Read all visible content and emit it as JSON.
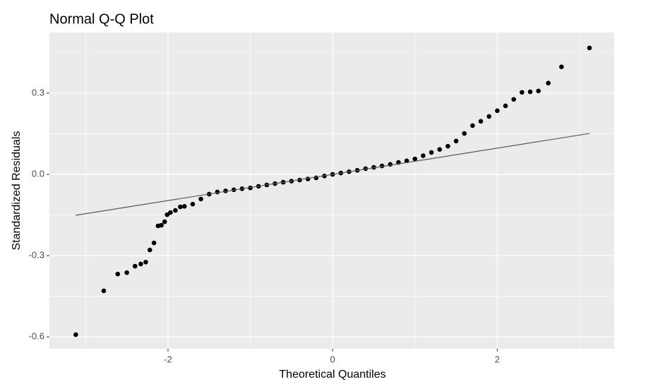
{
  "chart_data": {
    "type": "scatter",
    "title": "Normal Q-Q Plot",
    "x_label": "Theoretical Quantiles",
    "y_label": "Standardized Residuals",
    "series": [
      {
        "color": "#000000",
        "kind": "points",
        "x": [
          -3.12,
          -2.78,
          -2.61,
          -2.5,
          -2.4,
          -2.33,
          -2.27,
          -2.22,
          -2.17,
          -2.12,
          -2.08,
          -2.04,
          -2.01,
          -1.97,
          -1.91,
          -1.85,
          -1.8,
          -1.7,
          -1.6,
          -1.5,
          -1.4,
          -1.3,
          -1.2,
          -1.1,
          -1.0,
          -0.9,
          -0.8,
          -0.7,
          -0.6,
          -0.5,
          -0.4,
          -0.3,
          -0.2,
          -0.1,
          0,
          0.1,
          0.2,
          0.3,
          0.4,
          0.5,
          0.6,
          0.7,
          0.8,
          0.9,
          1.0,
          1.1,
          1.2,
          1.3,
          1.4,
          1.5,
          1.6,
          1.7,
          1.8,
          1.9,
          2.0,
          2.1,
          2.2,
          2.3,
          2.4,
          2.5,
          2.62,
          2.78,
          3.12
        ],
        "values": [
          -0.592,
          -0.43,
          -0.368,
          -0.363,
          -0.339,
          -0.331,
          -0.324,
          -0.279,
          -0.253,
          -0.19,
          -0.188,
          -0.175,
          -0.149,
          -0.141,
          -0.133,
          -0.12,
          -0.118,
          -0.11,
          -0.091,
          -0.073,
          -0.065,
          -0.061,
          -0.057,
          -0.053,
          -0.05,
          -0.044,
          -0.039,
          -0.034,
          -0.029,
          -0.025,
          -0.021,
          -0.017,
          -0.013,
          -0.006,
          0,
          0.005,
          0.01,
          0.015,
          0.021,
          0.026,
          0.031,
          0.037,
          0.044,
          0.05,
          0.057,
          0.069,
          0.081,
          0.092,
          0.104,
          0.123,
          0.151,
          0.18,
          0.196,
          0.214,
          0.235,
          0.253,
          0.277,
          0.303,
          0.305,
          0.308,
          0.337,
          0.397,
          0.467
        ]
      },
      {
        "color": "#595959",
        "kind": "line",
        "x": [
          -3.12,
          3.12
        ],
        "values": [
          -0.151,
          0.151
        ]
      }
    ],
    "xlim": [
      -3.44,
      3.42
    ],
    "ylim": [
      -0.644,
      0.524
    ],
    "xticks": [
      -2,
      0,
      2
    ],
    "yticks": [
      -0.6,
      -0.3,
      {
        "value": 0,
        "label": "0.0"
      },
      0.3
    ],
    "grid": true,
    "panel_color": "#ebebeb"
  }
}
